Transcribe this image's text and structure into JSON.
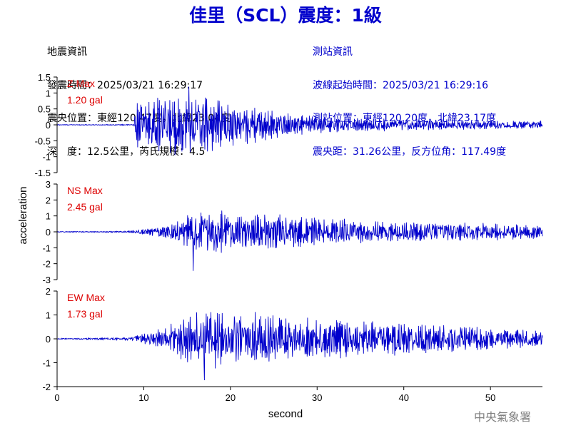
{
  "header": {
    "title": "佳里（SCL）震度：1級",
    "quake_info": [
      "地震資訊",
      "發震時間：2025/03/21 16:29:17",
      "震央位置：東經120.47度，北緯23.04度",
      "深　度：12.5公里，芮氏規模：4.5"
    ],
    "station_info": [
      "測站資訊",
      "波線起始時間：2025/03/21 16:29:16",
      "測站位置：東經120.20度，北緯23.17度",
      "震央距：31.26公里，反方位角：117.49度"
    ]
  },
  "footer": {
    "agency": "中央氣象署"
  },
  "colors": {
    "trace": "#0000cc",
    "annotation": "#dd0000",
    "axis": "#000000",
    "watermark": "#808080"
  },
  "chart_data": [
    {
      "type": "line",
      "component": "Z",
      "max_label": "Z Max",
      "max_value_label": "1.20 gal",
      "ylim": [
        -1.5,
        1.5
      ],
      "yticks": [
        -1.5,
        -1,
        -0.5,
        0,
        0.5,
        1,
        1.5
      ],
      "ytick_labels": [
        "-1.5",
        "-1",
        "-0.5",
        "0",
        "0.5",
        "1",
        "1.5"
      ],
      "xlim": [
        0,
        56
      ],
      "envelope": {
        "t": [
          0,
          8.8,
          9.0,
          10,
          12,
          14,
          16,
          18,
          20,
          22,
          25,
          28,
          32,
          36,
          40,
          45,
          50,
          56
        ],
        "amp": [
          0.015,
          0.015,
          0.75,
          0.85,
          0.95,
          1.05,
          1.15,
          1.0,
          0.8,
          0.65,
          0.5,
          0.35,
          0.28,
          0.22,
          0.2,
          0.18,
          0.16,
          0.15
        ]
      },
      "peak": {
        "t": 15.2,
        "value": 1.2
      }
    },
    {
      "type": "line",
      "component": "NS",
      "max_label": "NS Max",
      "max_value_label": "2.45 gal",
      "ylim": [
        -3,
        3
      ],
      "yticks": [
        -3,
        -2,
        -1,
        0,
        1,
        2,
        3
      ],
      "ytick_labels": [
        "-3",
        "-2",
        "-1",
        "0",
        "1",
        "2",
        "3"
      ],
      "xlim": [
        0,
        56
      ],
      "envelope": {
        "t": [
          0,
          8,
          10,
          12,
          14,
          16,
          18,
          20,
          22,
          24,
          26,
          30,
          35,
          40,
          45,
          50,
          56
        ],
        "amp": [
          0.03,
          0.05,
          0.2,
          0.45,
          0.8,
          1.4,
          1.6,
          1.35,
          1.2,
          1.5,
          1.3,
          1.0,
          0.85,
          0.75,
          0.7,
          0.6,
          0.5
        ]
      },
      "peak": {
        "t": 15.7,
        "value": -2.45
      }
    },
    {
      "type": "line",
      "component": "EW",
      "max_label": "EW Max",
      "max_value_label": "1.73 gal",
      "ylim": [
        -2,
        2
      ],
      "yticks": [
        -2,
        -1,
        0,
        1,
        2
      ],
      "ytick_labels": [
        "-2",
        "-1",
        "0",
        "1",
        "2"
      ],
      "xlim": [
        0,
        56
      ],
      "envelope": {
        "t": [
          0,
          8,
          10,
          12,
          14,
          16,
          18,
          20,
          22,
          24,
          26,
          30,
          35,
          40,
          45,
          50,
          56
        ],
        "amp": [
          0.02,
          0.06,
          0.25,
          0.5,
          0.9,
          1.4,
          1.5,
          1.35,
          1.2,
          1.3,
          1.1,
          0.95,
          0.85,
          0.75,
          0.65,
          0.5,
          0.4
        ]
      },
      "peak": {
        "t": 17.0,
        "value": -1.73
      }
    }
  ],
  "axes": {
    "ylabel": "acceleration",
    "xlabel": "second",
    "xticks": [
      0,
      10,
      20,
      30,
      40,
      50
    ],
    "xtick_labels": [
      "0",
      "10",
      "20",
      "30",
      "40",
      "50"
    ]
  }
}
